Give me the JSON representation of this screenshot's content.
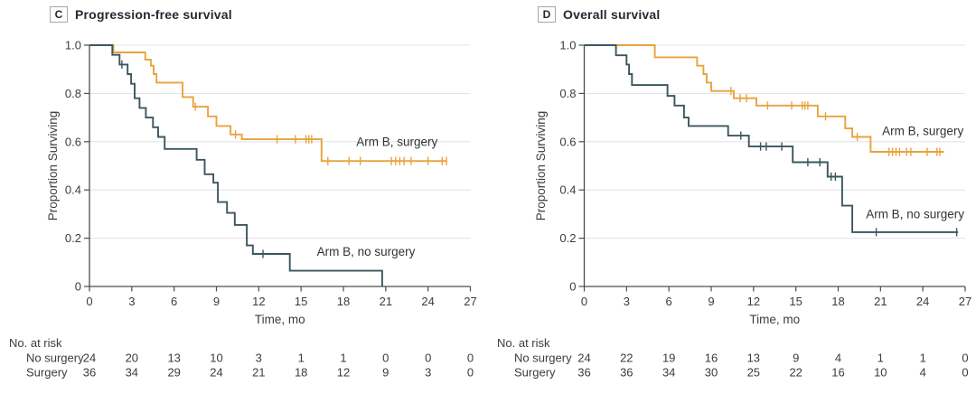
{
  "colors": {
    "surgery": "#e8a33d",
    "no_surgery": "#3a575c",
    "grid": "#e4e4e6",
    "axis": "#4d4d4f",
    "tick_text": "#3c3c3e",
    "label_text": "#2f3337",
    "title_text": "#232a32"
  },
  "chart_data": [
    {
      "type": "line",
      "subtype": "kaplan-meier-step",
      "panel_label": "C",
      "title": "Progression-free survival",
      "xlabel": "Time, mo",
      "ylabel": "Proportion Surviving",
      "xlim": [
        0,
        27
      ],
      "ylim": [
        0,
        1
      ],
      "xticks": [
        0,
        3,
        6,
        9,
        12,
        15,
        18,
        21,
        24,
        27
      ],
      "ytick_values": [
        1.0,
        0.8,
        0.6,
        0.4,
        0.2,
        0
      ],
      "ytick_labels": [
        "1.0",
        "0.8",
        "0.6",
        "0.4",
        "0.2",
        "0"
      ],
      "grid": "horizontal",
      "legend_position": "inline-curve-labels",
      "series": [
        {
          "name": "Arm B, surgery",
          "color": "#e8a33d",
          "points": [
            [
              0,
              1
            ],
            [
              1.7,
              1
            ],
            [
              1.7,
              0.97
            ],
            [
              3.95,
              0.97
            ],
            [
              3.95,
              0.94
            ],
            [
              4.35,
              0.94
            ],
            [
              4.35,
              0.915
            ],
            [
              4.55,
              0.915
            ],
            [
              4.55,
              0.88
            ],
            [
              4.75,
              0.88
            ],
            [
              4.75,
              0.845
            ],
            [
              6.6,
              0.845
            ],
            [
              6.6,
              0.785
            ],
            [
              7.35,
              0.785
            ],
            [
              7.35,
              0.745
            ],
            [
              8.4,
              0.745
            ],
            [
              8.4,
              0.705
            ],
            [
              9.0,
              0.705
            ],
            [
              9.0,
              0.665
            ],
            [
              10.0,
              0.665
            ],
            [
              10.0,
              0.63
            ],
            [
              10.8,
              0.63
            ],
            [
              10.8,
              0.61
            ],
            [
              16.45,
              0.61
            ],
            [
              16.45,
              0.52
            ],
            [
              25.35,
              0.52
            ]
          ],
          "censors": [
            [
              7.5,
              0.745
            ],
            [
              10.35,
              0.63
            ],
            [
              13.3,
              0.61
            ],
            [
              14.6,
              0.61
            ],
            [
              15.35,
              0.61
            ],
            [
              15.55,
              0.61
            ],
            [
              15.75,
              0.61
            ],
            [
              16.9,
              0.52
            ],
            [
              18.4,
              0.52
            ],
            [
              19.2,
              0.52
            ],
            [
              21.4,
              0.52
            ],
            [
              21.7,
              0.52
            ],
            [
              22.0,
              0.52
            ],
            [
              22.3,
              0.52
            ],
            [
              22.8,
              0.52
            ],
            [
              24.0,
              0.52
            ],
            [
              25.0,
              0.52
            ],
            [
              25.3,
              0.52
            ]
          ],
          "label": {
            "t": 21.8,
            "p": 0.6
          }
        },
        {
          "name": "Arm B, no surgery",
          "color": "#3a575c",
          "points": [
            [
              0,
              1
            ],
            [
              1.62,
              1
            ],
            [
              1.62,
              0.96
            ],
            [
              2.13,
              0.96
            ],
            [
              2.13,
              0.92
            ],
            [
              2.7,
              0.92
            ],
            [
              2.7,
              0.88
            ],
            [
              2.95,
              0.88
            ],
            [
              2.95,
              0.84
            ],
            [
              3.2,
              0.84
            ],
            [
              3.2,
              0.78
            ],
            [
              3.55,
              0.78
            ],
            [
              3.55,
              0.74
            ],
            [
              4.0,
              0.74
            ],
            [
              4.0,
              0.7
            ],
            [
              4.5,
              0.7
            ],
            [
              4.5,
              0.66
            ],
            [
              4.87,
              0.66
            ],
            [
              4.87,
              0.62
            ],
            [
              5.33,
              0.62
            ],
            [
              5.33,
              0.57
            ],
            [
              7.6,
              0.57
            ],
            [
              7.6,
              0.525
            ],
            [
              8.17,
              0.525
            ],
            [
              8.17,
              0.465
            ],
            [
              8.78,
              0.465
            ],
            [
              8.78,
              0.43
            ],
            [
              9.1,
              0.43
            ],
            [
              9.1,
              0.35
            ],
            [
              9.75,
              0.35
            ],
            [
              9.75,
              0.305
            ],
            [
              10.3,
              0.305
            ],
            [
              10.3,
              0.255
            ],
            [
              11.15,
              0.255
            ],
            [
              11.15,
              0.17
            ],
            [
              11.58,
              0.17
            ],
            [
              11.58,
              0.135
            ],
            [
              14.2,
              0.135
            ],
            [
              14.2,
              0.065
            ],
            [
              20.75,
              0.065
            ],
            [
              20.75,
              0
            ]
          ],
          "censors": [
            [
              2.3,
              0.92
            ],
            [
              12.3,
              0.135
            ]
          ],
          "label": {
            "t": 19.6,
            "p": 0.145
          }
        }
      ],
      "risk_table": {
        "title": "No. at risk",
        "time_points": [
          0,
          3,
          6,
          9,
          12,
          15,
          18,
          21,
          24,
          27
        ],
        "rows": [
          {
            "label": "No surgery",
            "values": [
              24,
              20,
              13,
              10,
              3,
              1,
              1,
              0,
              0,
              0
            ]
          },
          {
            "label": "Surgery",
            "values": [
              36,
              34,
              29,
              24,
              21,
              18,
              12,
              9,
              3,
              0
            ]
          }
        ]
      }
    },
    {
      "type": "line",
      "subtype": "kaplan-meier-step",
      "panel_label": "D",
      "title": "Overall survival",
      "xlabel": "Time, mo",
      "ylabel": "Proportion Surviving",
      "xlim": [
        0,
        27
      ],
      "ylim": [
        0,
        1
      ],
      "xticks": [
        0,
        3,
        6,
        9,
        12,
        15,
        18,
        21,
        24,
        27
      ],
      "ytick_values": [
        1.0,
        0.8,
        0.6,
        0.4,
        0.2,
        0
      ],
      "ytick_labels": [
        "1.0",
        "0.8",
        "0.6",
        "0.4",
        "0.2",
        "0"
      ],
      "grid": "horizontal",
      "legend_position": "inline-curve-labels",
      "series": [
        {
          "name": "Arm B, surgery",
          "color": "#e8a33d",
          "points": [
            [
              0,
              1
            ],
            [
              5.0,
              1
            ],
            [
              5.0,
              0.95
            ],
            [
              8.0,
              0.95
            ],
            [
              8.0,
              0.915
            ],
            [
              8.45,
              0.915
            ],
            [
              8.45,
              0.88
            ],
            [
              8.68,
              0.88
            ],
            [
              8.68,
              0.845
            ],
            [
              9.0,
              0.845
            ],
            [
              9.0,
              0.81
            ],
            [
              10.6,
              0.81
            ],
            [
              10.6,
              0.78
            ],
            [
              12.2,
              0.78
            ],
            [
              12.2,
              0.75
            ],
            [
              16.55,
              0.75
            ],
            [
              16.55,
              0.705
            ],
            [
              18.5,
              0.705
            ],
            [
              18.5,
              0.655
            ],
            [
              19.0,
              0.655
            ],
            [
              19.0,
              0.62
            ],
            [
              20.3,
              0.62
            ],
            [
              20.3,
              0.558
            ],
            [
              25.5,
              0.558
            ]
          ],
          "censors": [
            [
              10.4,
              0.81
            ],
            [
              11.05,
              0.78
            ],
            [
              11.5,
              0.78
            ],
            [
              13.0,
              0.75
            ],
            [
              14.7,
              0.75
            ],
            [
              15.45,
              0.75
            ],
            [
              15.65,
              0.75
            ],
            [
              15.85,
              0.75
            ],
            [
              17.1,
              0.705
            ],
            [
              19.35,
              0.62
            ],
            [
              21.6,
              0.558
            ],
            [
              21.85,
              0.558
            ],
            [
              22.1,
              0.558
            ],
            [
              22.35,
              0.558
            ],
            [
              22.85,
              0.558
            ],
            [
              23.15,
              0.558
            ],
            [
              24.3,
              0.558
            ],
            [
              25.0,
              0.558
            ],
            [
              25.2,
              0.558
            ]
          ],
          "label": {
            "t": 24.0,
            "p": 0.645
          }
        },
        {
          "name": "Arm B, no surgery",
          "color": "#3a575c",
          "points": [
            [
              0,
              1
            ],
            [
              2.25,
              1
            ],
            [
              2.25,
              0.958
            ],
            [
              3.0,
              0.958
            ],
            [
              3.0,
              0.92
            ],
            [
              3.18,
              0.92
            ],
            [
              3.18,
              0.88
            ],
            [
              3.38,
              0.88
            ],
            [
              3.38,
              0.835
            ],
            [
              5.9,
              0.835
            ],
            [
              5.9,
              0.79
            ],
            [
              6.4,
              0.79
            ],
            [
              6.4,
              0.75
            ],
            [
              7.07,
              0.75
            ],
            [
              7.07,
              0.7
            ],
            [
              7.4,
              0.7
            ],
            [
              7.4,
              0.665
            ],
            [
              10.2,
              0.665
            ],
            [
              10.2,
              0.625
            ],
            [
              11.67,
              0.625
            ],
            [
              11.67,
              0.58
            ],
            [
              14.78,
              0.58
            ],
            [
              14.78,
              0.515
            ],
            [
              17.25,
              0.515
            ],
            [
              17.25,
              0.455
            ],
            [
              18.28,
              0.455
            ],
            [
              18.28,
              0.335
            ],
            [
              19.0,
              0.335
            ],
            [
              19.0,
              0.225
            ],
            [
              26.5,
              0.225
            ]
          ],
          "censors": [
            [
              11.1,
              0.625
            ],
            [
              12.5,
              0.58
            ],
            [
              12.9,
              0.58
            ],
            [
              14.0,
              0.58
            ],
            [
              15.85,
              0.515
            ],
            [
              16.7,
              0.515
            ],
            [
              17.5,
              0.455
            ],
            [
              17.8,
              0.455
            ],
            [
              20.7,
              0.225
            ],
            [
              26.4,
              0.225
            ]
          ],
          "label": {
            "t": 23.45,
            "p": 0.3
          }
        }
      ],
      "risk_table": {
        "title": "No. at risk",
        "time_points": [
          0,
          3,
          6,
          9,
          12,
          15,
          18,
          21,
          24,
          27
        ],
        "rows": [
          {
            "label": "No surgery",
            "values": [
              24,
              22,
              19,
              16,
              13,
              9,
              4,
              1,
              1,
              0
            ]
          },
          {
            "label": "Surgery",
            "values": [
              36,
              36,
              34,
              30,
              25,
              22,
              16,
              10,
              4,
              0
            ]
          }
        ]
      }
    }
  ]
}
